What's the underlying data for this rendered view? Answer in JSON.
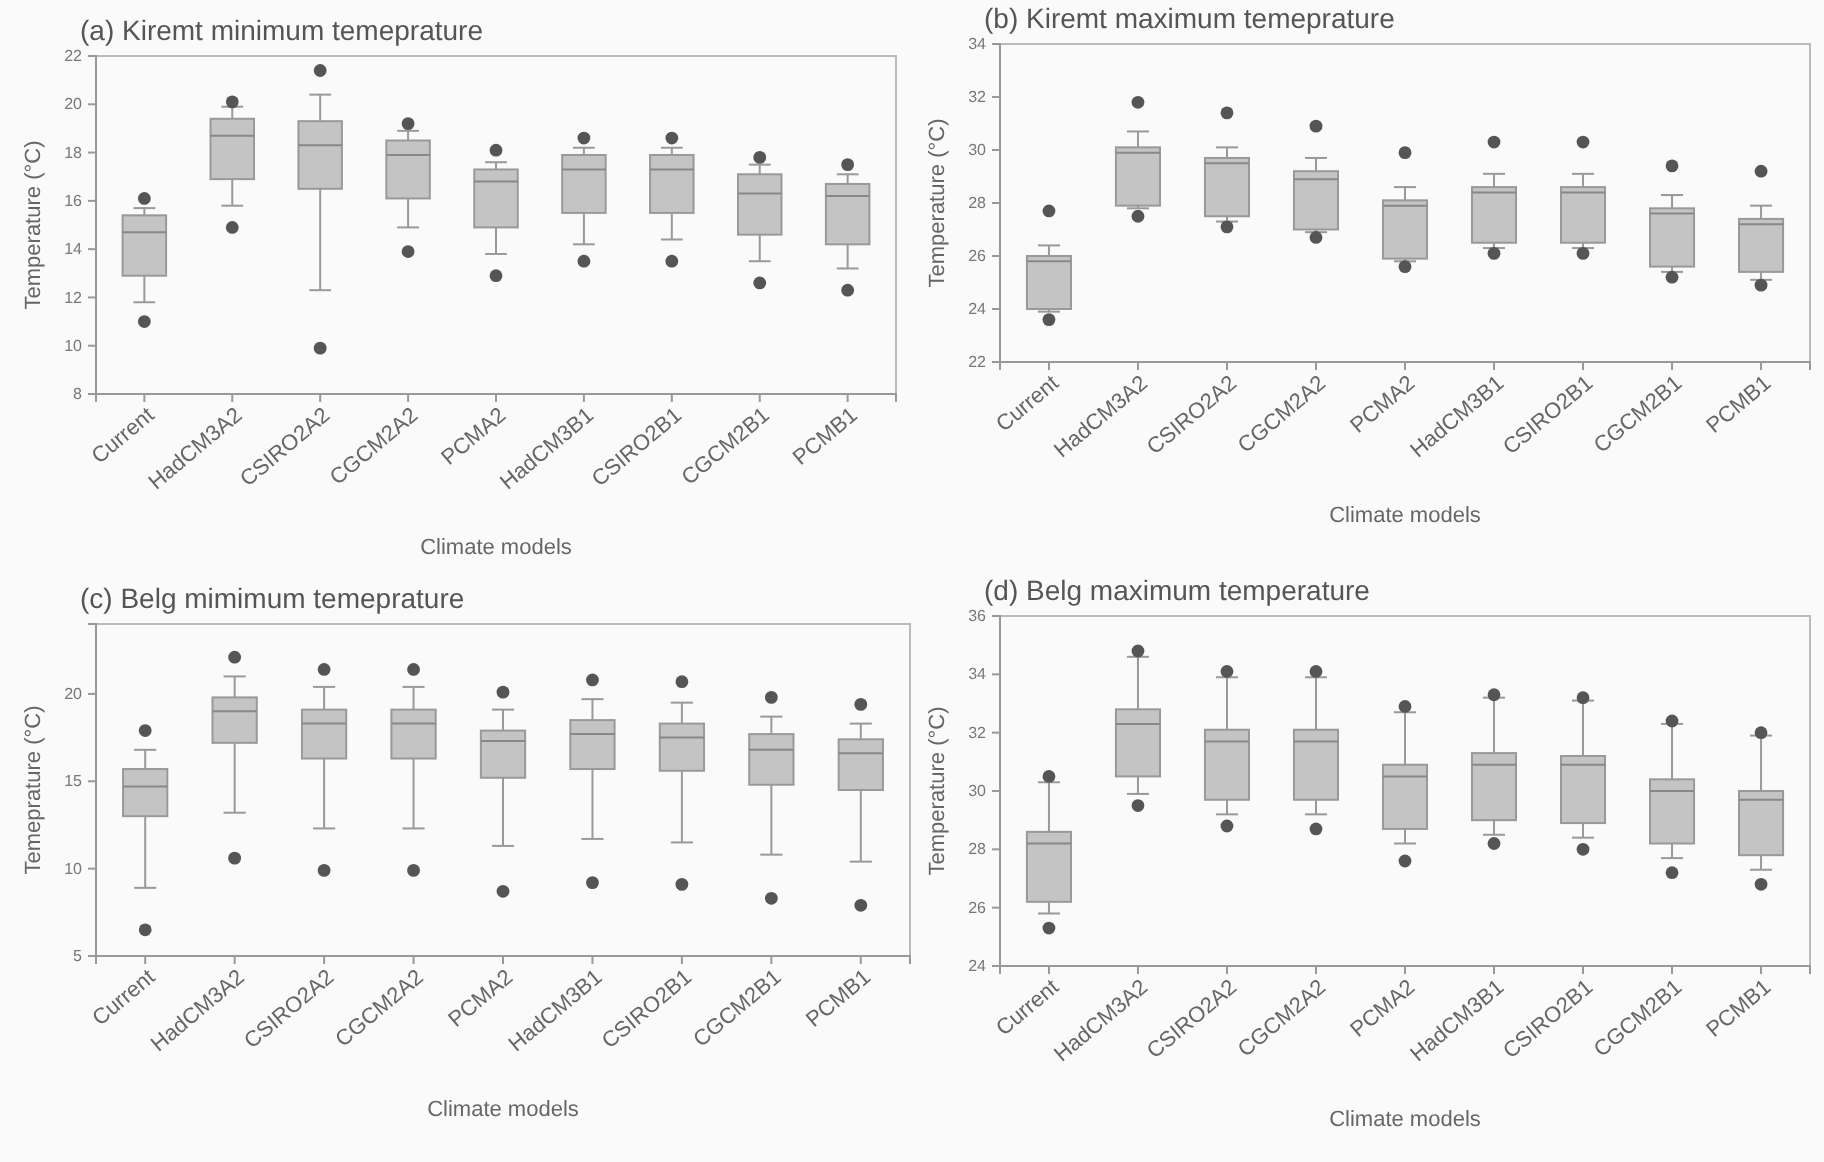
{
  "chart_data": [
    {
      "type": "box",
      "title": "(a)  Kiremt minimum temeprature",
      "xlabel": "Climate models",
      "ylabel": "Temperature (°C)",
      "color": "#c4c4c4",
      "categories": [
        "Current",
        "HadCM3A2",
        "CSIRO2A2",
        "CGCM2A2",
        "PCMA2",
        "HadCM3B1",
        "CSIRO2B1",
        "CGCM2B1",
        "PCMB1"
      ],
      "ylim": [
        8,
        22
      ],
      "yticks": [
        8,
        10,
        12,
        14,
        16,
        18,
        20,
        22
      ],
      "boxes": [
        {
          "low": 11.8,
          "q1": 12.9,
          "median": 14.7,
          "q3": 15.4,
          "high": 15.7,
          "outliers": [
            16.1,
            11.0
          ]
        },
        {
          "low": 15.8,
          "q1": 16.9,
          "median": 18.7,
          "q3": 19.4,
          "high": 19.9,
          "outliers": [
            20.1,
            14.9
          ]
        },
        {
          "low": 12.3,
          "q1": 16.5,
          "median": 18.3,
          "q3": 19.3,
          "high": 20.4,
          "outliers": [
            21.4,
            9.9
          ]
        },
        {
          "low": 14.9,
          "q1": 16.1,
          "median": 17.9,
          "q3": 18.5,
          "high": 18.9,
          "outliers": [
            19.2,
            13.9
          ]
        },
        {
          "low": 13.8,
          "q1": 14.9,
          "median": 16.8,
          "q3": 17.3,
          "high": 17.6,
          "outliers": [
            18.1,
            12.9
          ]
        },
        {
          "low": 14.2,
          "q1": 15.5,
          "median": 17.3,
          "q3": 17.9,
          "high": 18.2,
          "outliers": [
            18.6,
            13.5
          ]
        },
        {
          "low": 14.4,
          "q1": 15.5,
          "median": 17.3,
          "q3": 17.9,
          "high": 18.2,
          "outliers": [
            18.6,
            13.5
          ]
        },
        {
          "low": 13.5,
          "q1": 14.6,
          "median": 16.3,
          "q3": 17.1,
          "high": 17.5,
          "outliers": [
            17.8,
            12.6
          ]
        },
        {
          "low": 13.2,
          "q1": 14.2,
          "median": 16.2,
          "q3": 16.7,
          "high": 17.1,
          "outliers": [
            17.5,
            12.3
          ]
        }
      ]
    },
    {
      "type": "box",
      "title": "(b) Kiremt maximum temeprature",
      "xlabel": "Climate models",
      "ylabel": "Temperature (°C)",
      "color": "#c4c4c4",
      "categories": [
        "Current",
        "HadCM3A2",
        "CSIRO2A2",
        "CGCM2A2",
        "PCMA2",
        "HadCM3B1",
        "CSIRO2B1",
        "CGCM2B1",
        "PCMB1"
      ],
      "ylim": [
        22,
        34
      ],
      "yticks": [
        22,
        24,
        26,
        28,
        30,
        32,
        34
      ],
      "boxes": [
        {
          "low": 23.9,
          "q1": 24.0,
          "median": 25.8,
          "q3": 26.0,
          "high": 26.4,
          "outliers": [
            27.7,
            23.6
          ]
        },
        {
          "low": 27.8,
          "q1": 27.9,
          "median": 29.9,
          "q3": 30.1,
          "high": 30.7,
          "outliers": [
            31.8,
            27.5
          ]
        },
        {
          "low": 27.3,
          "q1": 27.5,
          "median": 29.5,
          "q3": 29.7,
          "high": 30.1,
          "outliers": [
            31.4,
            27.1
          ]
        },
        {
          "low": 26.9,
          "q1": 27.0,
          "median": 28.9,
          "q3": 29.2,
          "high": 29.7,
          "outliers": [
            30.9,
            26.7
          ]
        },
        {
          "low": 25.8,
          "q1": 25.9,
          "median": 27.9,
          "q3": 28.1,
          "high": 28.6,
          "outliers": [
            29.9,
            25.6
          ]
        },
        {
          "low": 26.3,
          "q1": 26.5,
          "median": 28.4,
          "q3": 28.6,
          "high": 29.1,
          "outliers": [
            30.3,
            26.1
          ]
        },
        {
          "low": 26.3,
          "q1": 26.5,
          "median": 28.4,
          "q3": 28.6,
          "high": 29.1,
          "outliers": [
            30.3,
            26.1
          ]
        },
        {
          "low": 25.4,
          "q1": 25.6,
          "median": 27.6,
          "q3": 27.8,
          "high": 28.3,
          "outliers": [
            29.4,
            25.2
          ]
        },
        {
          "low": 25.1,
          "q1": 25.4,
          "median": 27.2,
          "q3": 27.4,
          "high": 27.9,
          "outliers": [
            29.2,
            24.9
          ]
        }
      ]
    },
    {
      "type": "box",
      "title": "(c) Belg mimimum temeprature",
      "xlabel": "Climate models",
      "ylabel": "Temeprature (°C)",
      "color": "#c4c4c4",
      "categories": [
        "Current",
        "HadCM3A2",
        "CSIRO2A2",
        "CGCM2A2",
        "PCMA2",
        "HadCM3B1",
        "CSIRO2B1",
        "CGCM2B1",
        "PCMB1"
      ],
      "ylim": [
        5,
        24
      ],
      "yticks": [
        5,
        10,
        15,
        20
      ],
      "boxes": [
        {
          "low": 8.9,
          "q1": 13.0,
          "median": 14.7,
          "q3": 15.7,
          "high": 16.8,
          "outliers": [
            17.9,
            6.5
          ]
        },
        {
          "low": 13.2,
          "q1": 17.2,
          "median": 19.0,
          "q3": 19.8,
          "high": 21.0,
          "outliers": [
            22.1,
            10.6
          ]
        },
        {
          "low": 12.3,
          "q1": 16.3,
          "median": 18.3,
          "q3": 19.1,
          "high": 20.4,
          "outliers": [
            21.4,
            9.9
          ]
        },
        {
          "low": 12.3,
          "q1": 16.3,
          "median": 18.3,
          "q3": 19.1,
          "high": 20.4,
          "outliers": [
            21.4,
            9.9
          ]
        },
        {
          "low": 11.3,
          "q1": 15.2,
          "median": 17.3,
          "q3": 17.9,
          "high": 19.1,
          "outliers": [
            20.1,
            8.7
          ]
        },
        {
          "low": 11.7,
          "q1": 15.7,
          "median": 17.7,
          "q3": 18.5,
          "high": 19.7,
          "outliers": [
            20.8,
            9.2
          ]
        },
        {
          "low": 11.5,
          "q1": 15.6,
          "median": 17.5,
          "q3": 18.3,
          "high": 19.5,
          "outliers": [
            20.7,
            9.1
          ]
        },
        {
          "low": 10.8,
          "q1": 14.8,
          "median": 16.8,
          "q3": 17.7,
          "high": 18.7,
          "outliers": [
            19.8,
            8.3
          ]
        },
        {
          "low": 10.4,
          "q1": 14.5,
          "median": 16.6,
          "q3": 17.4,
          "high": 18.3,
          "outliers": [
            19.4,
            7.9
          ]
        }
      ]
    },
    {
      "type": "box",
      "title": "(d) Belg maximum temperature",
      "xlabel": "Climate models",
      "ylabel": "Temperature (°C)",
      "color": "#c4c4c4",
      "categories": [
        "Current",
        "HadCM3A2",
        "CSIRO2A2",
        "CGCM2A2",
        "PCMA2",
        "HadCM3B1",
        "CSIRO2B1",
        "CGCM2B1",
        "PCMB1"
      ],
      "ylim": [
        24,
        36
      ],
      "yticks": [
        24,
        26,
        28,
        30,
        32,
        34,
        36
      ],
      "boxes": [
        {
          "low": 25.8,
          "q1": 26.2,
          "median": 28.2,
          "q3": 28.6,
          "high": 30.3,
          "outliers": [
            30.5,
            25.3
          ]
        },
        {
          "low": 29.9,
          "q1": 30.5,
          "median": 32.3,
          "q3": 32.8,
          "high": 34.6,
          "outliers": [
            34.8,
            29.5
          ]
        },
        {
          "low": 29.2,
          "q1": 29.7,
          "median": 31.7,
          "q3": 32.1,
          "high": 33.9,
          "outliers": [
            34.1,
            28.8
          ]
        },
        {
          "low": 29.2,
          "q1": 29.7,
          "median": 31.7,
          "q3": 32.1,
          "high": 33.9,
          "outliers": [
            34.1,
            28.7
          ]
        },
        {
          "low": 28.2,
          "q1": 28.7,
          "median": 30.5,
          "q3": 30.9,
          "high": 32.7,
          "outliers": [
            32.9,
            27.6
          ]
        },
        {
          "low": 28.5,
          "q1": 29.0,
          "median": 30.9,
          "q3": 31.3,
          "high": 33.2,
          "outliers": [
            33.3,
            28.2
          ]
        },
        {
          "low": 28.4,
          "q1": 28.9,
          "median": 30.9,
          "q3": 31.2,
          "high": 33.1,
          "outliers": [
            33.2,
            28.0
          ]
        },
        {
          "low": 27.7,
          "q1": 28.2,
          "median": 30.0,
          "q3": 30.4,
          "high": 32.3,
          "outliers": [
            32.4,
            27.2
          ]
        },
        {
          "low": 27.3,
          "q1": 27.8,
          "median": 29.7,
          "q3": 30.0,
          "high": 31.9,
          "outliers": [
            32.0,
            26.8
          ]
        }
      ]
    }
  ]
}
